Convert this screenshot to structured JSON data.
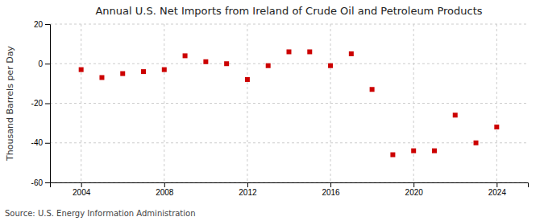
{
  "chart_data": {
    "type": "scatter",
    "title": "Annual U.S. Net Imports from Ireland of Crude Oil and Petroleum Products",
    "ylabel": "Thousand Barrels per Day",
    "source": "Source: U.S. Energy Information Administration",
    "x": [
      2004,
      2005,
      2006,
      2007,
      2008,
      2009,
      2010,
      2011,
      2012,
      2013,
      2014,
      2015,
      2016,
      2017,
      2018,
      2019,
      2020,
      2021,
      2022,
      2023,
      2024
    ],
    "values": [
      -3,
      -7,
      -5,
      -4,
      -3,
      4,
      1,
      0,
      -8,
      -1,
      6,
      6,
      -1,
      5,
      -13,
      -46,
      -44,
      -44,
      -26,
      -40,
      -32
    ],
    "color": "#cc0000",
    "marker": "square",
    "grid": true,
    "xlim": [
      2002.5,
      2025.5
    ],
    "xticks": [
      2004,
      2008,
      2012,
      2016,
      2020,
      2024
    ],
    "ylim": [
      -60,
      20
    ],
    "yticks": [
      -60,
      -40,
      -20,
      0,
      20
    ]
  }
}
